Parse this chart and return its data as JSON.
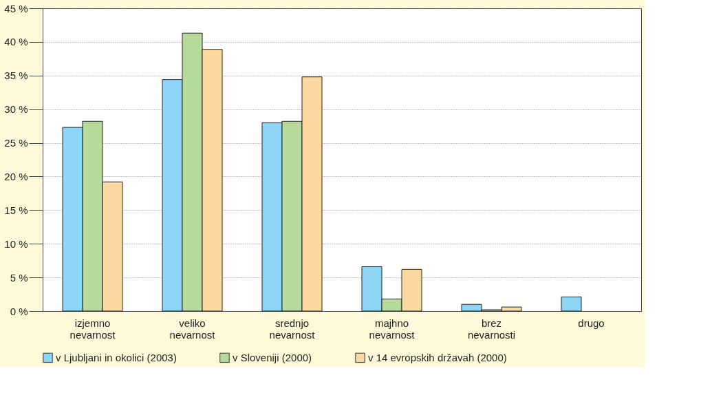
{
  "chart_data": {
    "type": "bar",
    "categories": [
      "izjemno nevarnost",
      "veliko nevarnost",
      "srednjo nevarnost",
      "majhno nevarnost",
      "brez nevarnosti",
      "drugo"
    ],
    "series": [
      {
        "name": "v Ljubljani in okolici (2003)",
        "color": "#8dd6f5",
        "values": [
          27.3,
          34.4,
          28.0,
          6.6,
          1.0,
          2.1
        ]
      },
      {
        "name": "v Sloveniji (2000)",
        "color": "#b6da9a",
        "values": [
          28.2,
          41.3,
          28.2,
          1.8,
          0.2,
          null
        ]
      },
      {
        "name": "v 14 evropskih državah (2000)",
        "color": "#fdd9a2",
        "values": [
          19.2,
          38.9,
          34.8,
          6.2,
          0.6,
          null
        ]
      }
    ],
    "ylim": [
      0,
      45
    ],
    "yticks": [
      {
        "value": 0,
        "label": "0 %"
      },
      {
        "value": 5,
        "label": "5 %"
      },
      {
        "value": 10,
        "label": "10 %"
      },
      {
        "value": 15,
        "label": "15 %"
      },
      {
        "value": 20,
        "label": "20 %"
      },
      {
        "value": 25,
        "label": "25 %"
      },
      {
        "value": 30,
        "label": "30 %"
      },
      {
        "value": 35,
        "label": "35 %"
      },
      {
        "value": 40,
        "label": "40 %"
      },
      {
        "value": 45,
        "label": "45 %"
      }
    ],
    "grid": "y",
    "legend": "bottom"
  }
}
